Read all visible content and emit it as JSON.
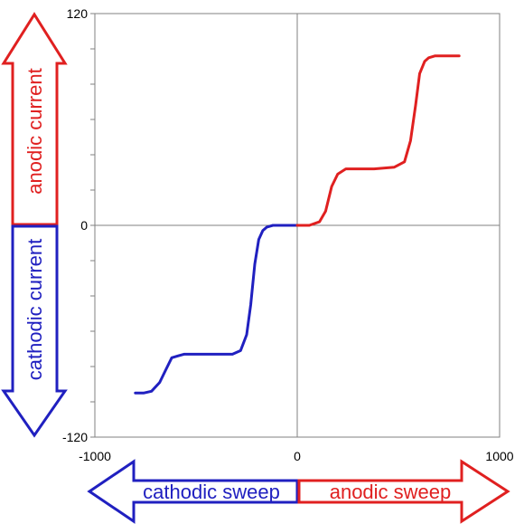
{
  "chart_data": {
    "type": "line",
    "xlim": [
      -1000,
      1000
    ],
    "ylim": [
      -120,
      120
    ],
    "x_ticks": [
      "-1000",
      "0",
      "1000"
    ],
    "y_ticks": [
      "120",
      "0",
      "-120"
    ],
    "grid": false,
    "series": [
      {
        "color": "#2020c0",
        "x": [
          -800,
          -760,
          -720,
          -680,
          -650,
          -620,
          -590,
          -560,
          -500,
          -400,
          -320,
          -280,
          -250,
          -230,
          -210,
          -190,
          -170,
          -150,
          -120,
          -100,
          -60,
          -30,
          0
        ],
        "y": [
          -95,
          -95,
          -94,
          -89,
          -82,
          -75,
          -74,
          -73,
          -73,
          -73,
          -73,
          -71,
          -62,
          -45,
          -22,
          -8,
          -3,
          -1,
          0,
          0,
          0,
          0,
          0
        ]
      },
      {
        "color": "#e02020",
        "x": [
          0,
          60,
          110,
          140,
          170,
          200,
          240,
          280,
          380,
          480,
          530,
          560,
          585,
          605,
          630,
          650,
          680,
          730,
          800
        ],
        "y": [
          0,
          0,
          2,
          8,
          22,
          29,
          32,
          32,
          32,
          33,
          36,
          48,
          68,
          86,
          93,
          95,
          96,
          96,
          96
        ]
      }
    ],
    "annotations": {
      "anodic_current": "anodic current",
      "cathodic_current": "cathodic current",
      "cathodic_sweep": "cathodic sweep",
      "anodic_sweep": "anodic sweep"
    }
  },
  "colors": {
    "anodic": "#e02020",
    "cathodic": "#2020c0",
    "axis": "#808080"
  }
}
